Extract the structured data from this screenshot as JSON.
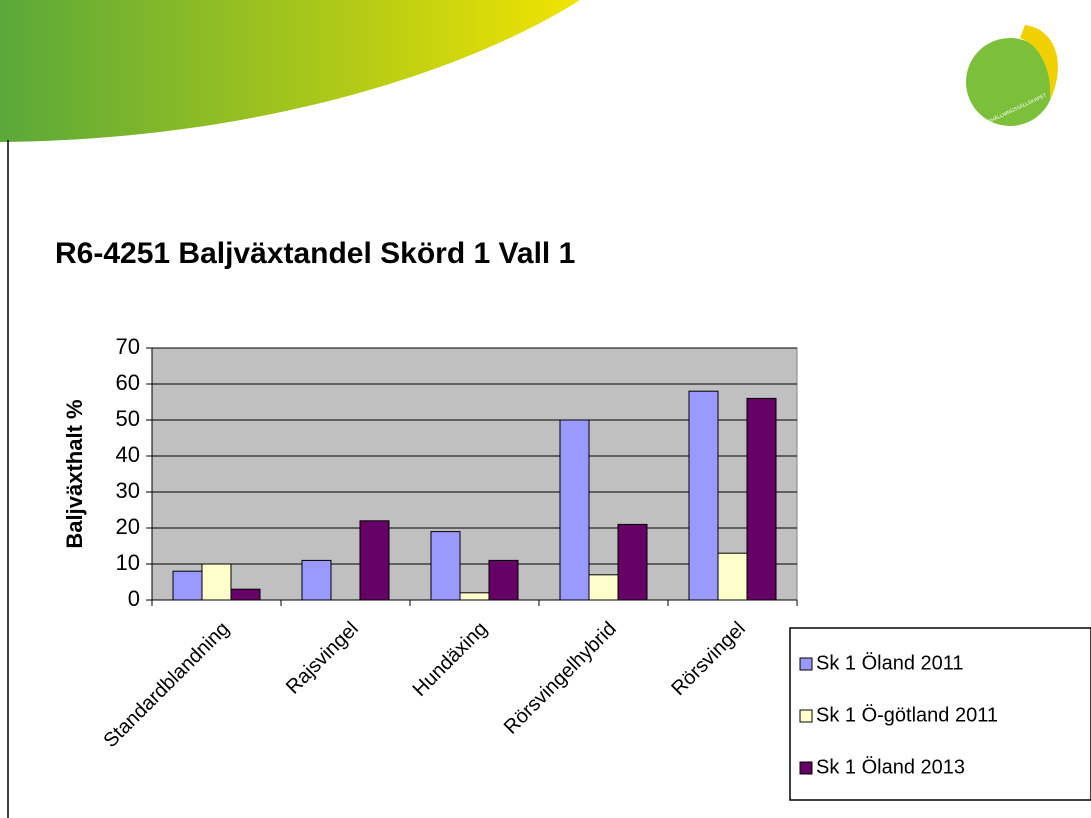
{
  "logo_text": "HUSHÅLLNINGSSÄLLSKAPET",
  "chart_data": {
    "type": "bar",
    "title": "R6-4251 Baljväxtandel Skörd 1 Vall 1",
    "ylabel": "Baljväxthalt %",
    "categories": [
      "Standardblandning",
      "Rajsvingel",
      "Hundäxing",
      "Rörsvingelhybrid",
      "Rörsvingel"
    ],
    "series": [
      {
        "name": "Sk 1 Öland 2011",
        "color": "#9999ff",
        "values": [
          8,
          11,
          19,
          50,
          58
        ]
      },
      {
        "name": "Sk 1 Ö-götland 2011",
        "color": "#ffffcc",
        "values": [
          10,
          null,
          2,
          7,
          13
        ]
      },
      {
        "name": "Sk 1 Öland 2013",
        "color": "#660066",
        "values": [
          3,
          22,
          11,
          21,
          56
        ]
      }
    ],
    "ylim": [
      0,
      70
    ],
    "yticks": [
      0,
      10,
      20,
      30,
      40,
      50,
      60,
      70
    ],
    "grid": true,
    "legend": "bottom-right",
    "plot_background": "#c0c0c0"
  }
}
